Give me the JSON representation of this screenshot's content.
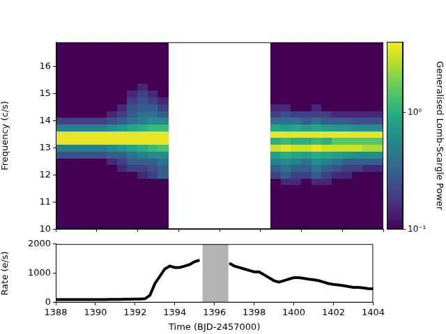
{
  "chart_data": [
    {
      "type": "heatmap",
      "xlim": [
        1388,
        1404
      ],
      "xticks": [
        1388,
        1390,
        1392,
        1394,
        1396,
        1398,
        1400,
        1402,
        1404
      ],
      "ylim": [
        10,
        16.9
      ],
      "yticks": [
        10,
        11,
        12,
        13,
        14,
        15,
        16
      ],
      "y_label": "Frequency (c/s)",
      "tick_labels": "y",
      "grid": false,
      "x": [
        1388.25,
        1388.75,
        1389.25,
        1389.75,
        1390.25,
        1390.75,
        1391.25,
        1391.75,
        1392.25,
        1392.75,
        1393.25,
        1398.75,
        1399.25,
        1399.75,
        1400.25,
        1400.75,
        1401.25,
        1401.75,
        1402.25,
        1402.75,
        1403.25,
        1403.75
      ],
      "y": [
        11.75,
        12.0,
        12.25,
        12.5,
        12.75,
        13.0,
        13.25,
        13.5,
        13.75,
        14.0,
        14.25,
        14.5,
        14.75,
        15.0,
        15.25
      ],
      "z": [
        [
          0.1,
          0.1,
          0.1,
          0.1,
          0.1,
          0.1,
          0.1,
          0.1,
          0.1,
          0.1,
          0.1,
          0.1,
          0.15,
          0.15,
          0.1,
          0.15,
          0.15,
          0.1,
          0.1,
          0.1,
          0.1,
          0.1
        ],
        [
          0.1,
          0.1,
          0.1,
          0.1,
          0.1,
          0.1,
          0.1,
          0.1,
          0.15,
          0.2,
          0.3,
          0.2,
          0.3,
          0.2,
          0.2,
          0.3,
          0.2,
          0.15,
          0.15,
          0.1,
          0.1,
          0.1
        ],
        [
          0.1,
          0.1,
          0.1,
          0.1,
          0.1,
          0.1,
          0.15,
          0.2,
          0.2,
          0.25,
          0.3,
          0.3,
          0.4,
          0.3,
          0.3,
          0.4,
          0.3,
          0.25,
          0.2,
          0.2,
          0.15,
          0.15
        ],
        [
          0.1,
          0.1,
          0.1,
          0.1,
          0.1,
          0.15,
          0.2,
          0.3,
          0.3,
          0.3,
          0.4,
          0.5,
          0.6,
          0.5,
          0.4,
          0.6,
          0.5,
          0.4,
          0.3,
          0.3,
          0.3,
          0.3
        ],
        [
          0.25,
          0.25,
          0.25,
          0.25,
          0.25,
          0.3,
          0.3,
          0.4,
          0.5,
          0.6,
          0.6,
          0.8,
          1,
          0.9,
          0.8,
          1,
          0.9,
          0.8,
          0.7,
          0.6,
          0.6,
          0.6
        ],
        [
          0.5,
          0.5,
          0.5,
          0.5,
          0.5,
          0.6,
          0.7,
          0.9,
          1,
          1.2,
          1.4,
          3,
          3.5,
          3,
          3,
          3.5,
          3,
          3,
          3,
          3,
          2.5,
          2.5
        ],
        [
          3.5,
          3.5,
          3.5,
          3.5,
          3.5,
          3.5,
          3.5,
          3.5,
          3.5,
          3.5,
          3.5,
          1,
          1.2,
          1,
          1,
          1.2,
          1,
          1.5,
          1.5,
          1.5,
          1.5,
          1.5
        ],
        [
          3.5,
          3.5,
          3.5,
          3.5,
          3.5,
          3.5,
          3.5,
          3.5,
          3.5,
          3.5,
          3.5,
          3.5,
          3.5,
          3.5,
          3.5,
          3.5,
          3.5,
          3.5,
          3.5,
          3.5,
          3.5,
          3.5
        ],
        [
          0.5,
          0.5,
          0.5,
          0.5,
          0.5,
          0.6,
          0.7,
          0.9,
          1,
          1.2,
          1.2,
          0.9,
          0.8,
          0.9,
          0.8,
          0.9,
          0.8,
          0.7,
          0.7,
          0.6,
          0.6,
          0.6
        ],
        [
          0.2,
          0.2,
          0.2,
          0.2,
          0.2,
          0.25,
          0.3,
          0.4,
          0.5,
          0.6,
          0.6,
          0.4,
          0.4,
          0.4,
          0.3,
          0.4,
          0.3,
          0.3,
          0.3,
          0.25,
          0.25,
          0.25
        ],
        [
          0.1,
          0.1,
          0.1,
          0.1,
          0.1,
          0.15,
          0.2,
          0.3,
          0.4,
          0.4,
          0.3,
          0.2,
          0.25,
          0.2,
          0.2,
          0.2,
          0.2,
          0.15,
          0.15,
          0.15,
          0.15,
          0.15
        ],
        [
          0.1,
          0.1,
          0.1,
          0.1,
          0.1,
          0.1,
          0.15,
          0.25,
          0.3,
          0.3,
          0.2,
          0.15,
          0.15,
          0.1,
          0.1,
          0.15,
          0.1,
          0.1,
          0.1,
          0.1,
          0.1,
          0.1
        ],
        [
          0.1,
          0.1,
          0.1,
          0.1,
          0.1,
          0.1,
          0.1,
          0.2,
          0.25,
          0.2,
          0.15,
          0.1,
          0.1,
          0.1,
          0.1,
          0.1,
          0.1,
          0.1,
          0.1,
          0.1,
          0.1,
          0.1
        ],
        [
          0.1,
          0.1,
          0.1,
          0.1,
          0.1,
          0.1,
          0.1,
          0.15,
          0.2,
          0.15,
          0.1,
          0.1,
          0.1,
          0.1,
          0.1,
          0.1,
          0.1,
          0.1,
          0.1,
          0.1,
          0.1,
          0.1
        ],
        [
          0.1,
          0.1,
          0.1,
          0.1,
          0.1,
          0.1,
          0.1,
          0.1,
          0.15,
          0.1,
          0.1,
          0.1,
          0.1,
          0.1,
          0.1,
          0.1,
          0.1,
          0.1,
          0.1,
          0.1,
          0.1,
          0.1
        ]
      ],
      "colorbar": {
        "label": "Generalised Lomb-Scargle Power",
        "log": true,
        "lim": [
          0.1,
          4
        ],
        "ticks": [
          {
            "value": 0.1,
            "label": "10⁻¹"
          },
          {
            "value": 1,
            "label": "10⁰"
          }
        ]
      }
    },
    {
      "type": "line",
      "color": "#000000",
      "xlim": [
        1388,
        1404
      ],
      "xticks": [
        1388,
        1390,
        1392,
        1394,
        1396,
        1398,
        1400,
        1402,
        1404
      ],
      "ylim": [
        0,
        2000
      ],
      "yticks": [
        0,
        1000,
        2000
      ],
      "x_label": "Time (BJD-2457000)",
      "y_label": "Rate (e/s)",
      "grid": false,
      "shaded_span": [
        1395.4,
        1396.7
      ],
      "shade_color": "#b3b3b3",
      "x": [
        1388,
        1388.25,
        1388.5,
        1388.75,
        1389,
        1389.25,
        1389.5,
        1389.75,
        1390,
        1390.25,
        1390.5,
        1390.75,
        1391,
        1391.25,
        1391.5,
        1391.75,
        1392,
        1392.25,
        1392.5,
        1392.75,
        1393,
        1393.25,
        1393.5,
        1393.75,
        1394,
        1394.25,
        1394.5,
        1394.75,
        1395,
        1395.25,
        1395.5,
        1395.75,
        1396,
        1396.25,
        1396.5,
        1396.75,
        1397,
        1397.25,
        1397.5,
        1397.75,
        1398,
        1398.25,
        1398.5,
        1398.75,
        1399,
        1399.25,
        1399.5,
        1399.75,
        1400,
        1400.25,
        1400.5,
        1400.75,
        1401,
        1401.25,
        1401.5,
        1401.75,
        1402,
        1402.25,
        1402.5,
        1402.75,
        1403,
        1403.25,
        1403.5,
        1403.75,
        1404
      ],
      "values": [
        100,
        100,
        100,
        100,
        100,
        100,
        100,
        100,
        100,
        105,
        105,
        110,
        110,
        110,
        115,
        115,
        120,
        120,
        130,
        250,
        650,
        900,
        1150,
        1250,
        1200,
        1200,
        1250,
        1300,
        1400,
        1450,
        null,
        null,
        null,
        null,
        null,
        1350,
        1250,
        1200,
        1150,
        1100,
        1050,
        1050,
        950,
        850,
        750,
        700,
        750,
        800,
        850,
        850,
        830,
        800,
        780,
        750,
        700,
        650,
        620,
        600,
        580,
        550,
        520,
        520,
        500,
        480,
        470
      ]
    }
  ]
}
